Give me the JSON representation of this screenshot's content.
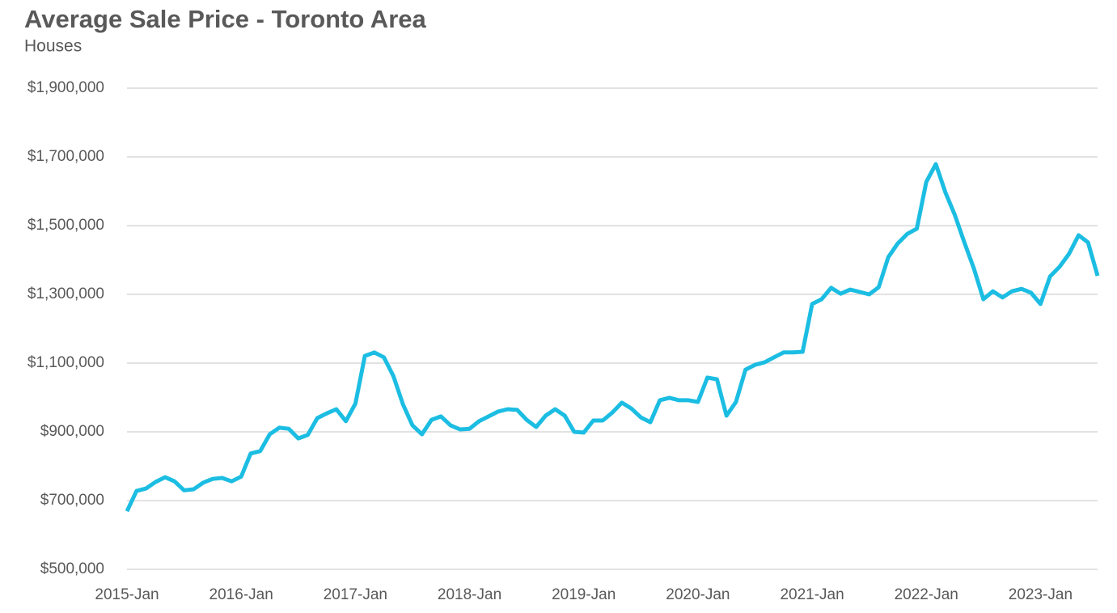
{
  "chart_data": {
    "type": "line",
    "title": "Average Sale Price - Toronto Area",
    "subtitle": "Houses",
    "categories": [
      "2015-Jan",
      null,
      null,
      null,
      null,
      null,
      null,
      null,
      null,
      null,
      null,
      null,
      "2016-Jan",
      null,
      null,
      null,
      null,
      null,
      null,
      null,
      null,
      null,
      null,
      null,
      "2017-Jan",
      null,
      null,
      null,
      null,
      null,
      null,
      null,
      null,
      null,
      null,
      null,
      "2018-Jan",
      null,
      null,
      null,
      null,
      null,
      null,
      null,
      null,
      null,
      null,
      null,
      "2019-Jan",
      null,
      null,
      null,
      null,
      null,
      null,
      null,
      null,
      null,
      null,
      null,
      "2020-Jan",
      null,
      null,
      null,
      null,
      null,
      null,
      null,
      null,
      null,
      null,
      null,
      "2021-Jan",
      null,
      null,
      null,
      null,
      null,
      null,
      null,
      null,
      null,
      null,
      null,
      "2022-Jan",
      null,
      null,
      null,
      null,
      null,
      null,
      null,
      null,
      null,
      null,
      null,
      "2023-Jan",
      null,
      null,
      null,
      null,
      null,
      null
    ],
    "values": [
      669000,
      728000,
      735000,
      754000,
      768000,
      756000,
      730000,
      733000,
      752000,
      763000,
      766000,
      756000,
      770000,
      837000,
      844000,
      893000,
      912000,
      909000,
      881000,
      891000,
      940000,
      954000,
      966000,
      931000,
      982000,
      1121000,
      1131000,
      1117000,
      1062000,
      980000,
      919000,
      893000,
      935000,
      945000,
      919000,
      907000,
      909000,
      931000,
      945000,
      959000,
      966000,
      964000,
      935000,
      914000,
      947000,
      966000,
      947000,
      900000,
      898000,
      933000,
      933000,
      956000,
      985000,
      968000,
      942000,
      928000,
      992000,
      999000,
      992000,
      992000,
      987000,
      1058000,
      1053000,
      947000,
      987000,
      1081000,
      1095000,
      1102000,
      1117000,
      1131000,
      1131000,
      1133000,
      1272000,
      1286000,
      1319000,
      1302000,
      1314000,
      1307000,
      1300000,
      1321000,
      1408000,
      1448000,
      1476000,
      1491000,
      1627000,
      1679000,
      1597000,
      1531000,
      1451000,
      1375000,
      1286000,
      1309000,
      1291000,
      1309000,
      1316000,
      1305000,
      1272000,
      1352000,
      1380000,
      1418000,
      1472000,
      1451000,
      1354000
    ],
    "color": "#1cbde2",
    "ylim": [
      500000,
      1900000
    ],
    "yticks": [
      {
        "value": 500000,
        "label": "$500,000"
      },
      {
        "value": 700000,
        "label": "$700,000"
      },
      {
        "value": 900000,
        "label": "$900,000"
      },
      {
        "value": 1100000,
        "label": "$1,100,000"
      },
      {
        "value": 1300000,
        "label": "$1,300,000"
      },
      {
        "value": 1500000,
        "label": "$1,500,000"
      },
      {
        "value": 1700000,
        "label": "$1,700,000"
      },
      {
        "value": 1900000,
        "label": "$1,900,000"
      }
    ],
    "grid": true
  }
}
